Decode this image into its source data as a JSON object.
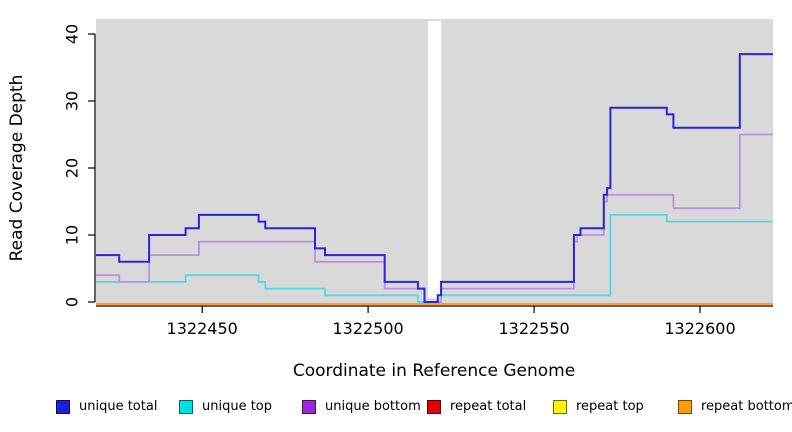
{
  "chart_data": {
    "type": "line",
    "line_style": "step-after",
    "title": "",
    "xlabel": "Coordinate in Reference Genome",
    "ylabel": "Read Coverage Depth",
    "xlim": [
      1322418,
      1322622
    ],
    "ylim": [
      0,
      40
    ],
    "x_ticks": [
      1322450,
      1322500,
      1322550,
      1322600
    ],
    "y_ticks": [
      0,
      10,
      20,
      30,
      40
    ],
    "grid": false,
    "legend_position": "bottom",
    "plot_background": "#d9d9d9",
    "page_background": "#ffffff",
    "axis_color": "#000000",
    "coverage_gap": {
      "x_start": 1322518,
      "x_end": 1322522,
      "color": "#ffffff"
    },
    "series": [
      {
        "name": "unique total",
        "line_color": "#2626db",
        "swatch_color": "#1f1fd1",
        "width": 2,
        "points": [
          [
            1322418,
            7
          ],
          [
            1322425,
            6
          ],
          [
            1322434,
            10
          ],
          [
            1322445,
            11
          ],
          [
            1322449,
            13
          ],
          [
            1322467,
            12
          ],
          [
            1322469,
            11
          ],
          [
            1322484,
            8
          ],
          [
            1322487,
            7
          ],
          [
            1322505,
            3
          ],
          [
            1322515,
            2
          ],
          [
            1322517,
            0
          ],
          [
            1322521,
            1
          ],
          [
            1322522,
            3
          ],
          [
            1322562,
            10
          ],
          [
            1322564,
            11
          ],
          [
            1322571,
            16
          ],
          [
            1322572,
            17
          ],
          [
            1322573,
            29
          ],
          [
            1322590,
            28
          ],
          [
            1322592,
            26
          ],
          [
            1322612,
            37
          ],
          [
            1322622,
            37
          ]
        ]
      },
      {
        "name": "unique top",
        "line_color": "#52d8e6",
        "swatch_color": "#00dfe6",
        "width": 1.8,
        "points": [
          [
            1322418,
            3
          ],
          [
            1322445,
            4
          ],
          [
            1322467,
            3
          ],
          [
            1322469,
            2
          ],
          [
            1322487,
            1
          ],
          [
            1322515,
            0
          ],
          [
            1322521,
            1
          ],
          [
            1322573,
            13
          ],
          [
            1322590,
            12
          ],
          [
            1322622,
            12
          ]
        ]
      },
      {
        "name": "unique bottom",
        "line_color": "#bd90e0",
        "swatch_color": "#9d26d6",
        "width": 1.8,
        "points": [
          [
            1322418,
            4
          ],
          [
            1322425,
            3
          ],
          [
            1322434,
            7
          ],
          [
            1322449,
            9
          ],
          [
            1322484,
            6
          ],
          [
            1322505,
            2
          ],
          [
            1322517,
            0
          ],
          [
            1322522,
            2
          ],
          [
            1322562,
            9
          ],
          [
            1322563,
            10
          ],
          [
            1322571,
            15
          ],
          [
            1322572,
            16
          ],
          [
            1322592,
            14
          ],
          [
            1322612,
            25
          ],
          [
            1322622,
            25
          ]
        ]
      },
      {
        "name": "repeat total",
        "line_color": "#e00000",
        "swatch_color": "#e00000",
        "width": 2,
        "points": [
          [
            1322418,
            0
          ],
          [
            1322622,
            0
          ]
        ]
      },
      {
        "name": "repeat top",
        "line_color": "#fff21c",
        "swatch_color": "#fff200",
        "width": 2,
        "points": [
          [
            1322418,
            0
          ],
          [
            1322622,
            0
          ]
        ]
      },
      {
        "name": "repeat bottom",
        "line_color": "#ff9d26",
        "swatch_color": "#ff9d00",
        "width": 2,
        "points": [
          [
            1322418,
            0
          ],
          [
            1322622,
            0
          ]
        ]
      }
    ]
  }
}
